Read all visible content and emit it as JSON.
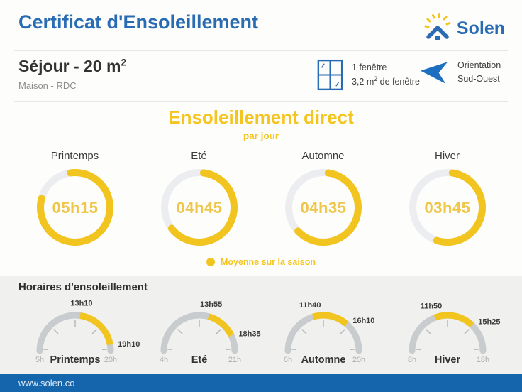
{
  "colors": {
    "brand_blue": "#2A6CB3",
    "accent_yellow": "#F2C41F",
    "ring_value_yellow": "#EEC64A",
    "ring_track": "#ECEDF1",
    "gauge_track": "#C9CCCF",
    "tick_gray": "#B5B8BB",
    "section_bg": "#F0F0EE",
    "footer_blue": "#1565AD",
    "dark_text": "#3C3C3C",
    "muted_text": "#ABAEB0"
  },
  "header": {
    "title": "Certificat d'Ensoleillement",
    "brand": "Solen"
  },
  "room": {
    "title": "Séjour - 20 m",
    "title_sup": "2",
    "subtitle": "Maison - RDC"
  },
  "info": {
    "window": {
      "line1": "1 fenêtre",
      "area_value": "3,2 m",
      "area_sup": "2",
      "area_suffix": " de fenêtre"
    },
    "orientation": {
      "line1": "Orientation",
      "line2": "Sud-Ouest"
    }
  },
  "footer": {
    "url": "www.solen.co"
  },
  "chart_data": [
    {
      "type": "ring-gauges",
      "title": "Ensoleillement direct",
      "subtitle": "par jour",
      "legend": "Moyenne sur la saison",
      "unit": "heures d'ensoleillement direct par jour",
      "gauges": [
        {
          "season": "Printemps",
          "value_label": "05h15",
          "hours": 5.25,
          "arc_start_deg": -8,
          "arc_end_deg": 285
        },
        {
          "season": "Eté",
          "value_label": "04h45",
          "hours": 4.75,
          "arc_start_deg": 7,
          "arc_end_deg": 233
        },
        {
          "season": "Automne",
          "value_label": "04h35",
          "hours": 4.58,
          "arc_start_deg": 8,
          "arc_end_deg": 227
        },
        {
          "season": "Hiver",
          "value_label": "03h45",
          "hours": 3.75,
          "arc_start_deg": 8,
          "arc_end_deg": 198
        }
      ]
    },
    {
      "type": "arc-gauges",
      "title": "Horaires d'ensoleillement",
      "gauges": [
        {
          "season": "Printemps",
          "scale_min_h": 5,
          "scale_max_h": 20,
          "min_label": "5h",
          "max_label": "20h",
          "sun_start_h": 13.17,
          "sun_end_h": 19.17,
          "start_label": "13h10",
          "end_label": "19h10"
        },
        {
          "season": "Eté",
          "scale_min_h": 4,
          "scale_max_h": 21,
          "min_label": "4h",
          "max_label": "21h",
          "sun_start_h": 13.92,
          "sun_end_h": 18.58,
          "start_label": "13h55",
          "end_label": "18h35"
        },
        {
          "season": "Automne",
          "scale_min_h": 6,
          "scale_max_h": 20,
          "min_label": "6h",
          "max_label": "20h",
          "sun_start_h": 11.67,
          "sun_end_h": 16.17,
          "start_label": "11h40",
          "end_label": "16h10"
        },
        {
          "season": "Hiver",
          "scale_min_h": 8,
          "scale_max_h": 18,
          "min_label": "8h",
          "max_label": "18h",
          "sun_start_h": 11.83,
          "sun_end_h": 15.42,
          "start_label": "11h50",
          "end_label": "15h25"
        }
      ]
    }
  ]
}
